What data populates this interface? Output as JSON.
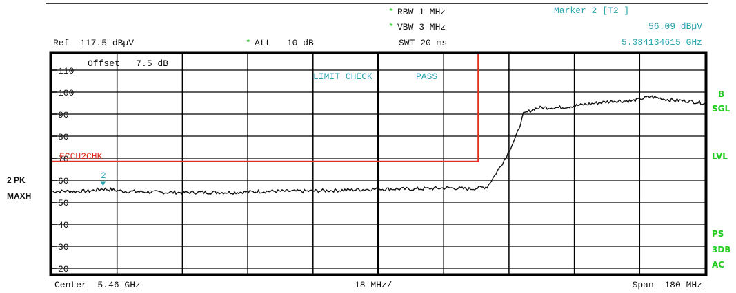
{
  "header": {
    "rbw": "RBW 1 MHz",
    "vbw": "VBW 3 MHz",
    "swt": "SWT 20 ms",
    "ref": "Ref  117.5 dBµV",
    "att": "Att   10 dB",
    "marker_title": "Marker 2 [T2 ]",
    "marker_level": "56.09 dBµV",
    "marker_freq": "5.384134615 GHz",
    "star": "*"
  },
  "annotations": {
    "offset": "Offset   7.5 dB",
    "limit_check": "LIMIT CHECK",
    "pass": "PASS",
    "limit_line_name": "FCCU2CHK",
    "marker_label": "2"
  },
  "left_labels": {
    "trace": "2 PK",
    "mode": "MAXH"
  },
  "right_labels": {
    "b": "B",
    "sgl": "SGL",
    "lvl": "LVL",
    "ps": "PS",
    "db3": "3DB",
    "ac": "AC"
  },
  "footer": {
    "center": "Center  5.46 GHz",
    "per_div": "18 MHz/",
    "span": "Span  180 MHz"
  },
  "colors": {
    "trace": "#111111",
    "limit": "#e03020",
    "teal": "#2aa6b0",
    "status_green": "#22cc22"
  },
  "chart_data": {
    "type": "line",
    "xlabel": "",
    "ylabel": "",
    "x_unit": "GHz",
    "xlim": [
      5.37,
      5.55
    ],
    "ylim": [
      17.5,
      117.5
    ],
    "y_ticks": [
      110,
      100,
      90,
      80,
      70,
      60,
      50,
      40,
      30,
      20
    ],
    "grid": true,
    "series": [
      {
        "x": [
          5.37,
          5.38,
          5.384,
          5.39,
          5.4,
          5.41,
          5.42,
          5.43,
          5.44,
          5.45,
          5.46,
          5.47,
          5.48,
          5.485,
          5.49,
          5.492,
          5.495,
          5.498,
          5.5,
          5.503,
          5.505,
          5.51,
          5.52,
          5.525,
          5.53,
          5.535,
          5.54,
          5.545,
          5.55
        ],
        "y": [
          55,
          55,
          56.1,
          55,
          54.5,
          54.5,
          54.5,
          55,
          55,
          55.5,
          56,
          56,
          56.5,
          56,
          57,
          62,
          70,
          80,
          90,
          92.5,
          93,
          93,
          95,
          96,
          96,
          98,
          96.5,
          96,
          95
        ]
      }
    ],
    "limit_line": {
      "name": "FCCU2CHK",
      "points": [
        [
          5.37,
          68.5
        ],
        [
          5.4875,
          68.5
        ],
        [
          5.4875,
          117.5
        ]
      ]
    },
    "marker": {
      "id": "2",
      "x": 5.384134615,
      "y": 56.09
    }
  }
}
